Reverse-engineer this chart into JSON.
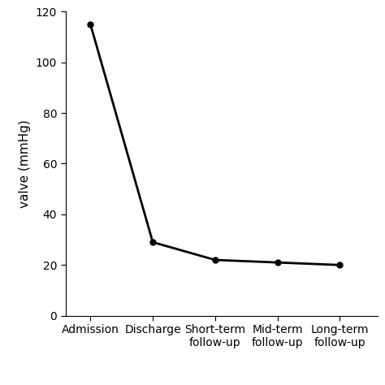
{
  "x_labels": [
    "Admission",
    "Discharge",
    "Short-term\nfollow-up",
    "Mid-term\nfollow-up",
    "Long-term\nfollow-up"
  ],
  "y_values": [
    115,
    29,
    22,
    21,
    20
  ],
  "ylim": [
    0,
    120
  ],
  "yticks": [
    0,
    20,
    40,
    60,
    80,
    100,
    120
  ],
  "ylabel": "valve (mmHg)",
  "line_color": "#000000",
  "marker": "o",
  "marker_size": 5,
  "line_width": 2.0,
  "background_color": "#ffffff",
  "tick_label_fontsize": 10,
  "ylabel_fontsize": 11,
  "ylabel_rotation": 90
}
